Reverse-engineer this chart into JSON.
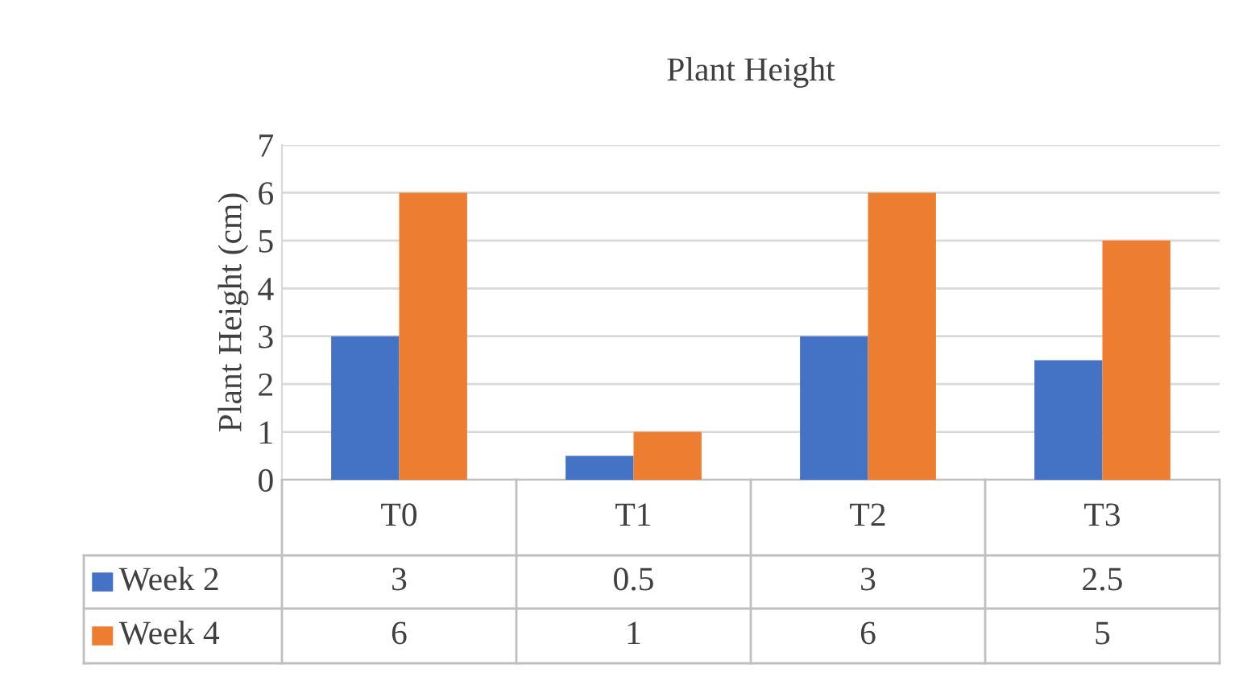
{
  "chart_data": {
    "type": "bar",
    "title": "Plant Height",
    "ylabel": "Plant Height (cm)",
    "categories": [
      "T0",
      "T1",
      "T2",
      "T3"
    ],
    "series": [
      {
        "name": "Week 2",
        "color": "#4472c4",
        "values": [
          3,
          0.5,
          3,
          2.5
        ]
      },
      {
        "name": "Week 4",
        "color": "#ed7d31",
        "values": [
          6,
          1,
          6,
          5
        ]
      }
    ],
    "ylim": [
      0,
      7
    ],
    "yticks": [
      0,
      1,
      2,
      3,
      4,
      5,
      6,
      7
    ],
    "grid": "y",
    "legend": "bottom",
    "data_labels": true
  }
}
